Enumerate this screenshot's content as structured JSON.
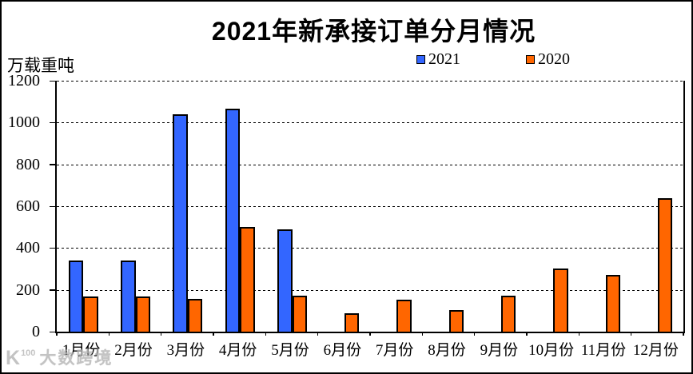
{
  "page": {
    "background": "#ffffff",
    "border_color": "#000000"
  },
  "chart_data": {
    "type": "bar",
    "title": "2021年新承接订单分月情况",
    "unit_label": "万载重吨",
    "categories": [
      "1月份",
      "2月份",
      "3月份",
      "4月份",
      "5月份",
      "6月份",
      "7月份",
      "8月份",
      "9月份",
      "10月份",
      "11月份",
      "12月份"
    ],
    "series": [
      {
        "name": "2021",
        "color": "#3366FF",
        "values": [
          340,
          340,
          1040,
          1065,
          490,
          null,
          null,
          null,
          null,
          null,
          null,
          null
        ]
      },
      {
        "name": "2020",
        "color": "#FF6600",
        "values": [
          170,
          170,
          155,
          500,
          172,
          88,
          152,
          105,
          173,
          302,
          270,
          640
        ]
      }
    ],
    "ylim": [
      0,
      1200
    ],
    "yticks": [
      0,
      200,
      400,
      600,
      800,
      1000,
      1200
    ],
    "grid": "dashed-horizontal",
    "legend_position": "top",
    "bar_outline_color": "#000000"
  },
  "legend_layout": {
    "item_lefts": [
      519,
      656
    ]
  },
  "watermark": {
    "logo_main": "K",
    "logo_sup": "100",
    "brand_text": "大数跨境"
  }
}
